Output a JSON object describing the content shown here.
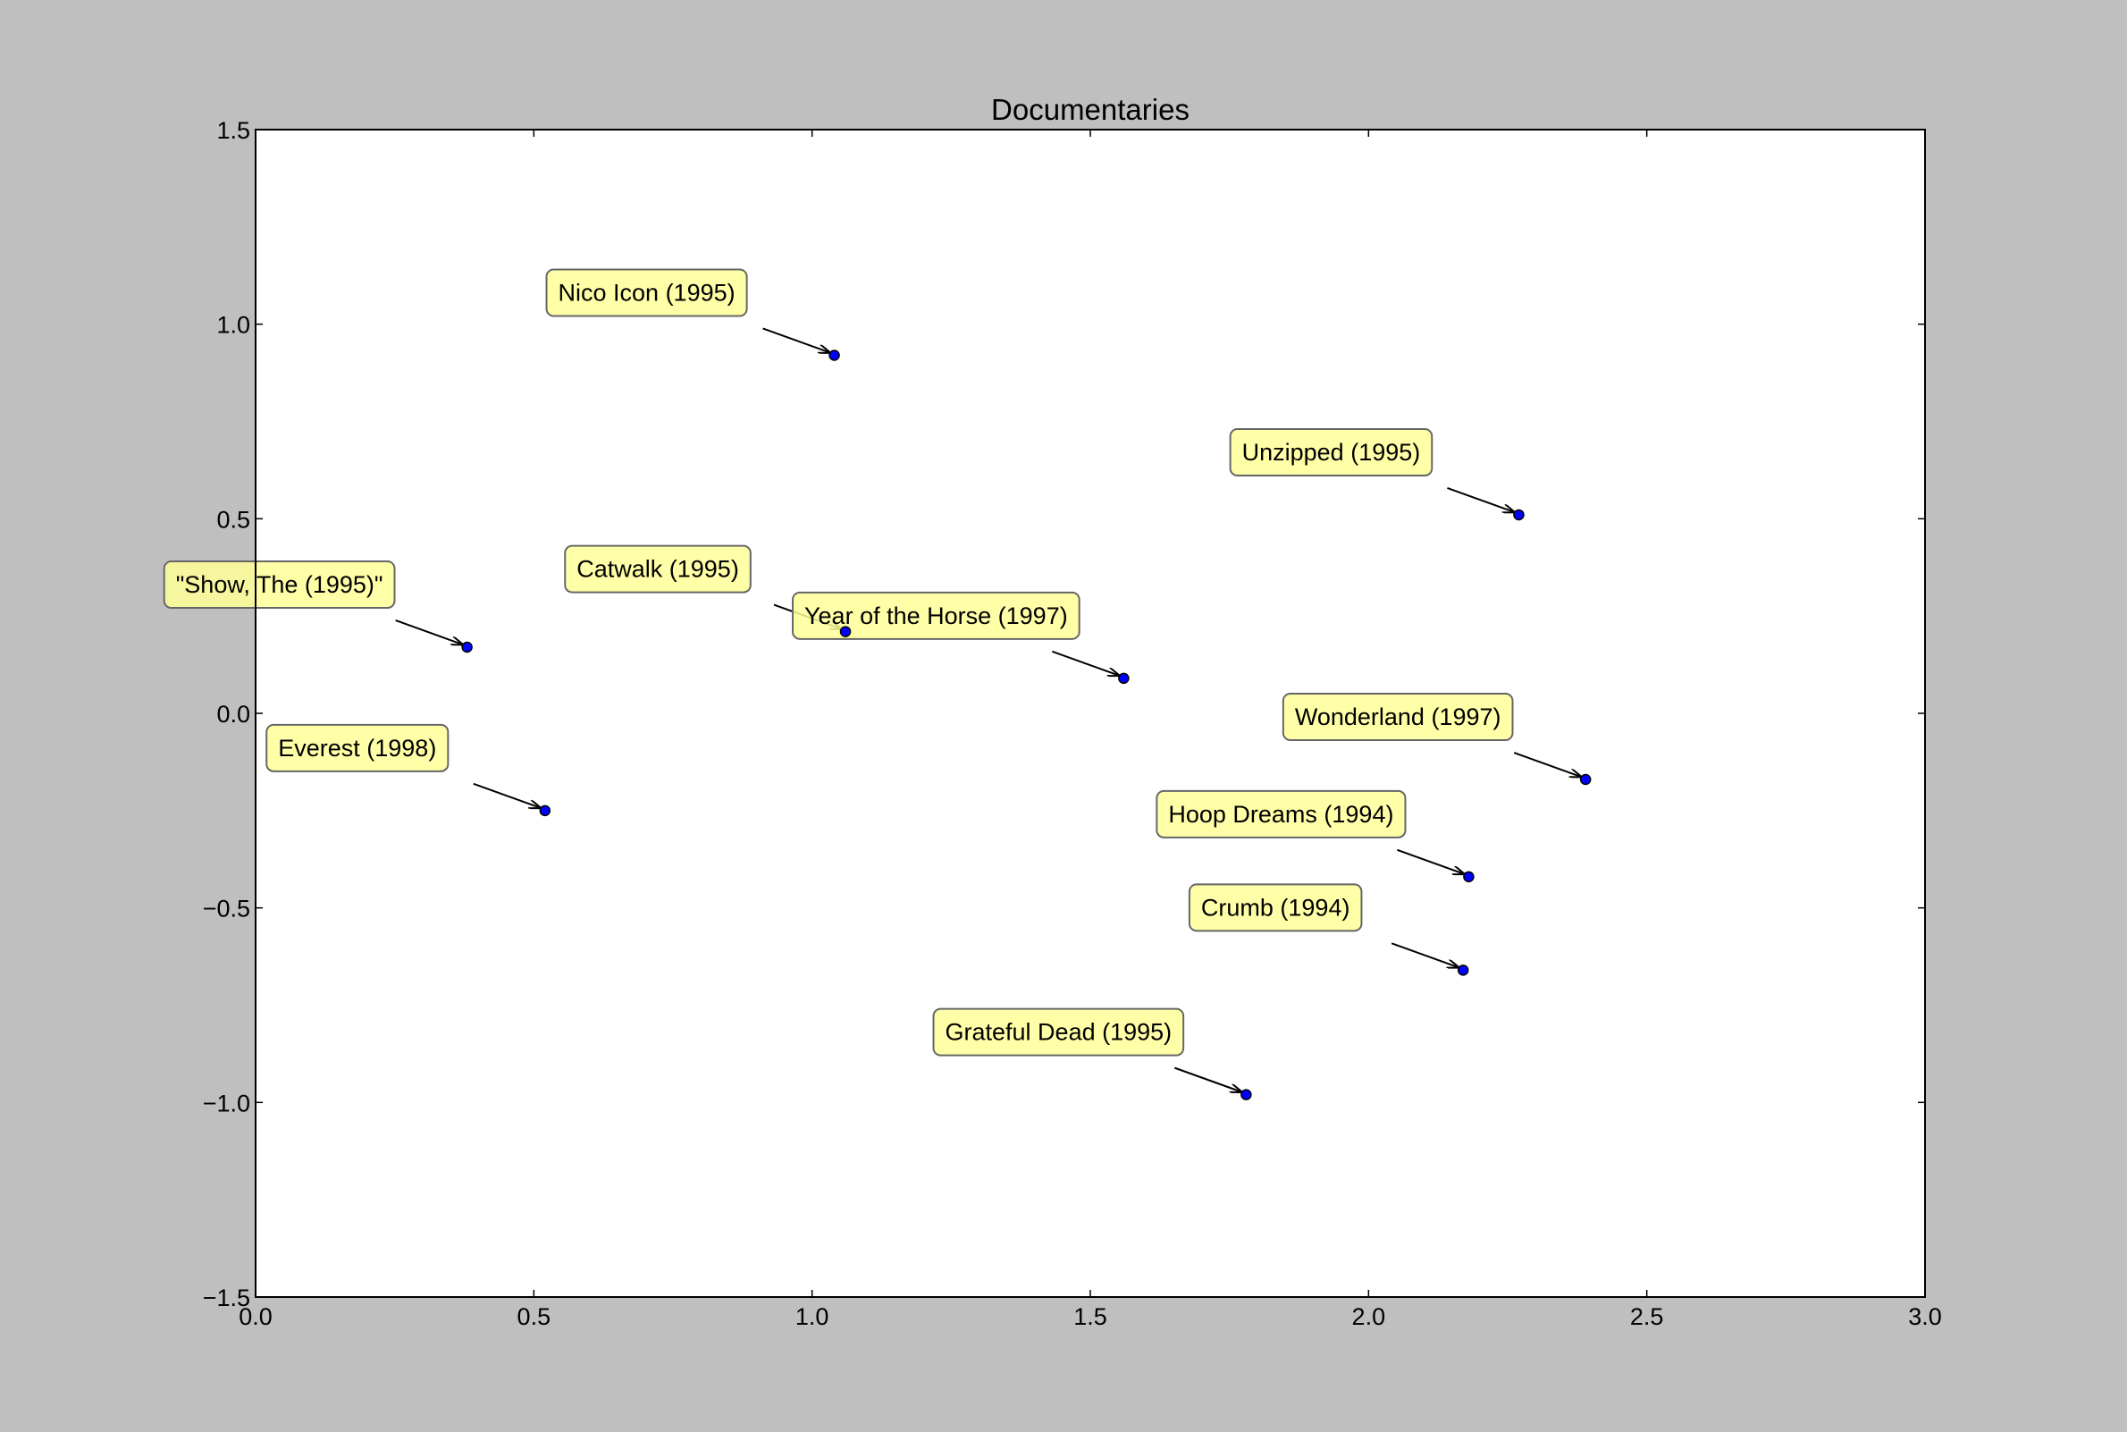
{
  "chart_data": {
    "type": "scatter",
    "title": "Documentaries",
    "xlabel": "",
    "ylabel": "",
    "xlim": [
      0.0,
      3.0
    ],
    "ylim": [
      -1.5,
      1.5
    ],
    "x_ticks": [
      "0.0",
      "0.5",
      "1.0",
      "1.5",
      "2.0",
      "2.5",
      "3.0"
    ],
    "y_ticks": [
      "1.5",
      "1.0",
      "0.5",
      "0.0",
      "−0.5",
      "−1.0",
      "−1.5"
    ],
    "grid": false,
    "point_color": "#0000ff",
    "annotation_box_color": "#ffff99",
    "points": [
      {
        "label": "Nico Icon (1995)",
        "x": 1.04,
        "y": 0.92
      },
      {
        "label": "Unzipped (1995)",
        "x": 2.27,
        "y": 0.51
      },
      {
        "label": "\"Show, The (1995)\"",
        "x": 0.38,
        "y": 0.17
      },
      {
        "label": "Catwalk (1995)",
        "x": 1.06,
        "y": 0.21
      },
      {
        "label": "Year of the Horse (1997)",
        "x": 1.56,
        "y": 0.09
      },
      {
        "label": "Wonderland (1997)",
        "x": 2.39,
        "y": -0.17
      },
      {
        "label": "Everest (1998)",
        "x": 0.52,
        "y": -0.25
      },
      {
        "label": "Hoop Dreams (1994)",
        "x": 2.18,
        "y": -0.42
      },
      {
        "label": "Crumb (1994)",
        "x": 2.17,
        "y": -0.66
      },
      {
        "label": "Grateful Dead (1995)",
        "x": 1.78,
        "y": -0.98
      }
    ]
  }
}
